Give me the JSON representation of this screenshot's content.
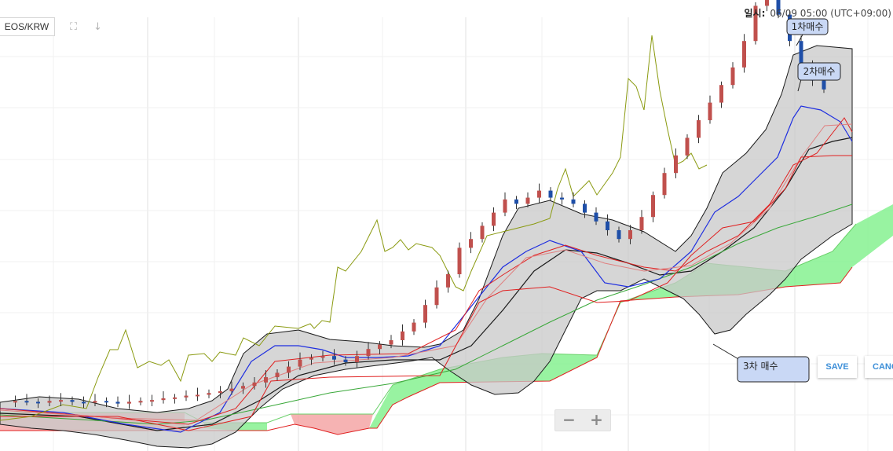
{
  "symbol": "EOS/KRW",
  "datetime": {
    "label": "일시:",
    "value": "06/09 05:00 (UTC+09:00)"
  },
  "icons": {
    "fullscreen": "fullscreen-icon",
    "download": "arrow-down-icon"
  },
  "buttons": {
    "save": "SAVE",
    "cancel": "CANCEL"
  },
  "zoom": {
    "minus": "−",
    "plus": "+"
  },
  "colors": {
    "up": "#c0504d",
    "down": "#1f4fa8",
    "bollinger_fill": "#cfcfcf",
    "bollinger_line": "#1a1a1a",
    "cloud_bull": "#7ef08a",
    "cloud_bear": "#f4a0a0",
    "ichimoku_line": "#e02020",
    "oscillator": "#8a9a10",
    "ma_long": "#3aa83a",
    "ma_short": "#1e2ee0"
  },
  "chart_data": {
    "type": "line",
    "series": [
      {
        "name": "",
        "values": [
          30,
          31,
          30,
          29,
          31,
          32,
          30,
          29,
          31,
          30,
          28,
          30,
          31,
          32,
          34,
          35,
          37,
          38,
          40,
          42,
          45,
          48,
          52,
          58,
          63,
          70,
          78,
          80,
          82,
          78,
          75,
          82,
          90,
          95,
          100,
          110,
          120,
          140,
          160,
          175,
          205,
          215,
          230,
          245,
          260,
          255,
          262,
          270,
          262,
          260,
          255,
          245,
          235,
          225,
          215,
          225,
          240,
          265,
          290,
          310,
          330,
          350,
          370,
          390,
          410,
          440,
          480,
          510,
          470,
          440,
          410,
          395,
          385
        ]
      }
    ],
    "annotations": [
      "1차매수",
      "2차매수",
      "3차 매수"
    ]
  }
}
